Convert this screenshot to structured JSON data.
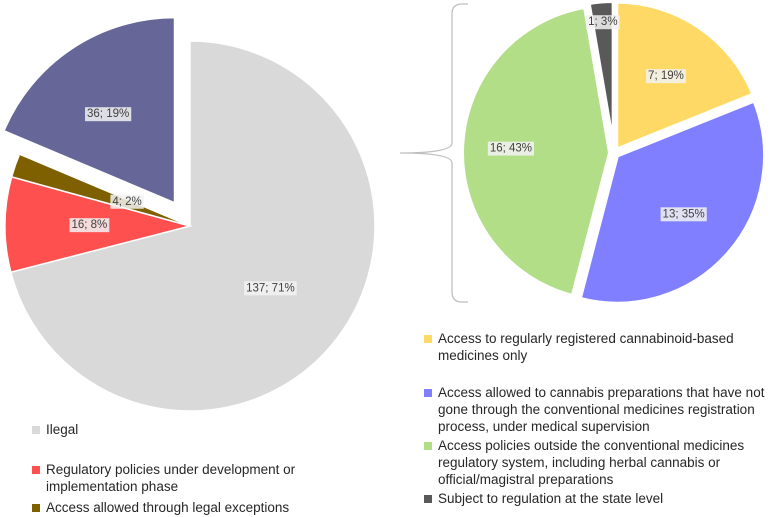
{
  "chart_data": [
    {
      "type": "pie",
      "name": "overall-status",
      "slices": [
        {
          "label": "Ilegal",
          "value": 137,
          "text": "137; 71%",
          "color": "#d9d9d9"
        },
        {
          "label": "Regulatory policies under development or implementation phase",
          "value": 16,
          "text": "16; 8%",
          "color": "#ff5050"
        },
        {
          "label": "Access allowed through legal exceptions",
          "value": 4,
          "text": "4; 2%",
          "color": "#7f6000"
        },
        {
          "label": "",
          "value": 36,
          "text": "36; 19%",
          "color": "#666699",
          "exploded": true
        }
      ],
      "legend": [
        "Ilegal",
        "Regulatory policies under development or implementation phase",
        "Access allowed through legal exceptions"
      ]
    },
    {
      "type": "pie",
      "name": "regulated-access-breakdown",
      "slices": [
        {
          "label": "Access to regularly registered cannabinoid-based medicines only",
          "value": 7,
          "text": "7; 19%",
          "color": "#ffd966"
        },
        {
          "label": "Access allowed to cannabis preparations that have not gone through the conventional medicines registration process, under medical supervision",
          "value": 13,
          "text": "13; 35%",
          "color": "#7f7fff"
        },
        {
          "label": "Access policies outside the conventional medicines regulatory system, including herbal cannabis or official/magistral preparations",
          "value": 16,
          "text": "16; 43%",
          "color": "#b3de88"
        },
        {
          "label": "Subject to regulation at the state level",
          "value": 1,
          "text": "1; 3%",
          "color": "#595959"
        }
      ]
    }
  ]
}
